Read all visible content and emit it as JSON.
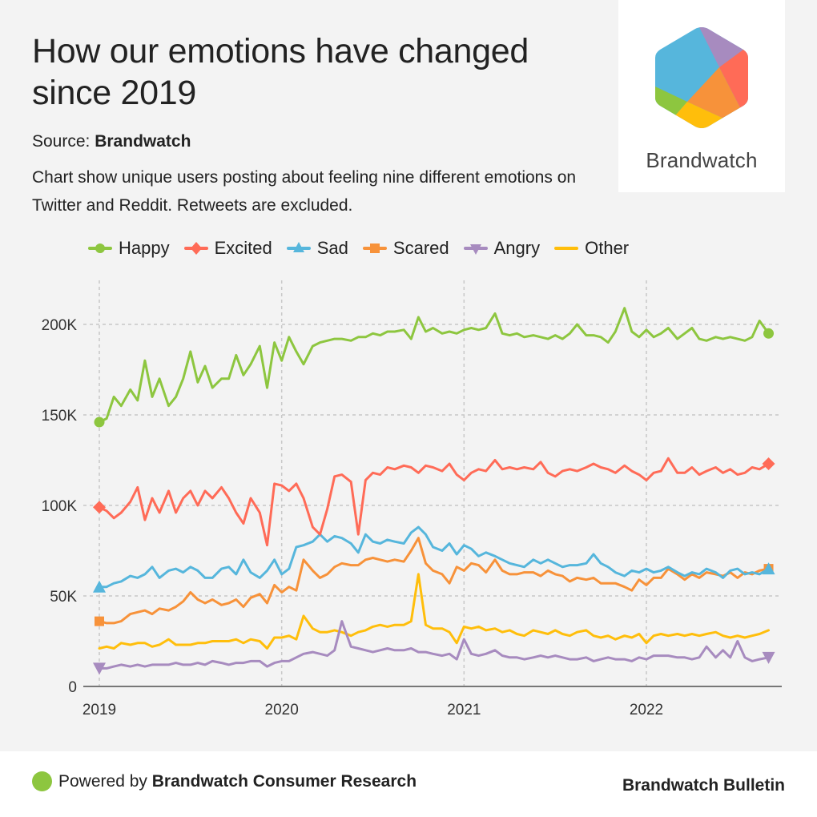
{
  "header": {
    "title": "How our emotions have changed since 2019",
    "source_label": "Source:",
    "source_name": "Brandwatch",
    "description": "Chart show unique users posting about feeling nine different emotions on Twitter and Reddit. Retweets are excluded."
  },
  "logo": {
    "text": "Brandwatch",
    "icon": "brandwatch-hexagon-logo"
  },
  "footer": {
    "powered_prefix": "Powered by",
    "powered_name": "Brandwatch Consumer Research",
    "right_text": "Brandwatch Bulletin",
    "dot_color": "#8dc63f"
  },
  "chart_data": {
    "type": "line",
    "title": "How our emotions have changed since 2019",
    "xlabel": "",
    "ylabel": "",
    "x_ticks": [
      "2019",
      "2020",
      "2021",
      "2022"
    ],
    "y_ticks": [
      "0",
      "50K",
      "100K",
      "150K",
      "200K"
    ],
    "y_tick_values": [
      0,
      50000,
      100000,
      150000,
      200000
    ],
    "ylim": [
      0,
      220000
    ],
    "xlim": [
      2019.0,
      2022.67
    ],
    "grid": true,
    "legend_position": "top",
    "x": [
      2019.0,
      2019.04,
      2019.08,
      2019.12,
      2019.17,
      2019.21,
      2019.25,
      2019.29,
      2019.33,
      2019.38,
      2019.42,
      2019.46,
      2019.5,
      2019.54,
      2019.58,
      2019.62,
      2019.67,
      2019.71,
      2019.75,
      2019.79,
      2019.83,
      2019.88,
      2019.92,
      2019.96,
      2020.0,
      2020.04,
      2020.08,
      2020.12,
      2020.17,
      2020.21,
      2020.25,
      2020.29,
      2020.33,
      2020.38,
      2020.42,
      2020.46,
      2020.5,
      2020.54,
      2020.58,
      2020.62,
      2020.67,
      2020.71,
      2020.75,
      2020.79,
      2020.83,
      2020.88,
      2020.92,
      2020.96,
      2021.0,
      2021.04,
      2021.08,
      2021.12,
      2021.17,
      2021.21,
      2021.25,
      2021.29,
      2021.33,
      2021.38,
      2021.42,
      2021.46,
      2021.5,
      2021.54,
      2021.58,
      2021.62,
      2021.67,
      2021.71,
      2021.75,
      2021.79,
      2021.83,
      2021.88,
      2021.92,
      2021.96,
      2022.0,
      2022.04,
      2022.08,
      2022.12,
      2022.17,
      2022.21,
      2022.25,
      2022.29,
      2022.33,
      2022.38,
      2022.42,
      2022.46,
      2022.5,
      2022.54,
      2022.58,
      2022.62,
      2022.67
    ],
    "series": [
      {
        "name": "Happy",
        "color": "#8dc63f",
        "marker": "circle",
        "values": [
          146000,
          148000,
          160000,
          155000,
          164000,
          158000,
          180000,
          160000,
          170000,
          155000,
          160000,
          170000,
          185000,
          168000,
          177000,
          165000,
          170000,
          170000,
          183000,
          172000,
          178000,
          188000,
          165000,
          190000,
          180000,
          193000,
          185000,
          178000,
          188000,
          190000,
          191000,
          192000,
          192000,
          191000,
          193000,
          193000,
          195000,
          194000,
          196000,
          196000,
          197000,
          192000,
          204000,
          196000,
          198000,
          195000,
          196000,
          195000,
          197000,
          198000,
          197000,
          198000,
          206000,
          195000,
          194000,
          195000,
          193000,
          194000,
          193000,
          192000,
          194000,
          192000,
          195000,
          200000,
          194000,
          194000,
          193000,
          190000,
          196000,
          209000,
          196000,
          193000,
          197000,
          193000,
          195000,
          198000,
          192000,
          195000,
          198000,
          192000,
          191000,
          193000,
          192000,
          193000,
          192000,
          191000,
          193000,
          202000,
          195000
        ]
      },
      {
        "name": "Excited",
        "color": "#ff6b57",
        "marker": "diamond",
        "values": [
          99000,
          97000,
          93000,
          96000,
          102000,
          110000,
          92000,
          104000,
          96000,
          108000,
          96000,
          104000,
          108000,
          100000,
          108000,
          104000,
          110000,
          104000,
          96000,
          90000,
          104000,
          96000,
          78000,
          112000,
          111000,
          108000,
          112000,
          104000,
          88000,
          84000,
          98000,
          116000,
          117000,
          113000,
          84000,
          114000,
          118000,
          117000,
          121000,
          120000,
          122000,
          121000,
          118000,
          122000,
          121000,
          119000,
          123000,
          117000,
          114000,
          118000,
          120000,
          119000,
          125000,
          120000,
          121000,
          120000,
          121000,
          120000,
          124000,
          118000,
          116000,
          119000,
          120000,
          119000,
          121000,
          123000,
          121000,
          120000,
          118000,
          122000,
          119000,
          117000,
          114000,
          118000,
          119000,
          126000,
          118000,
          118000,
          121000,
          117000,
          119000,
          121000,
          118000,
          120000,
          117000,
          118000,
          121000,
          120000,
          123000
        ]
      },
      {
        "name": "Sad",
        "color": "#56b6dc",
        "marker": "triangle-up",
        "values": [
          55000,
          55000,
          57000,
          58000,
          61000,
          60000,
          62000,
          66000,
          60000,
          64000,
          65000,
          63000,
          66000,
          64000,
          60000,
          60000,
          65000,
          66000,
          62000,
          70000,
          63000,
          60000,
          64000,
          70000,
          62000,
          65000,
          77000,
          78000,
          80000,
          84000,
          80000,
          83000,
          82000,
          79000,
          74000,
          84000,
          80000,
          79000,
          81000,
          80000,
          79000,
          85000,
          88000,
          84000,
          77000,
          75000,
          79000,
          73000,
          78000,
          76000,
          72000,
          74000,
          72000,
          70000,
          68000,
          67000,
          66000,
          70000,
          68000,
          70000,
          68000,
          66000,
          67000,
          67000,
          68000,
          73000,
          68000,
          66000,
          63000,
          61000,
          64000,
          63000,
          65000,
          63000,
          64000,
          66000,
          63000,
          61000,
          63000,
          62000,
          65000,
          63000,
          60000,
          64000,
          65000,
          62000,
          63000,
          62000,
          65000
        ]
      },
      {
        "name": "Scared",
        "color": "#f7923a",
        "marker": "square",
        "values": [
          36000,
          35000,
          35000,
          36000,
          40000,
          41000,
          42000,
          40000,
          43000,
          42000,
          44000,
          47000,
          52000,
          48000,
          46000,
          48000,
          45000,
          46000,
          48000,
          44000,
          49000,
          51000,
          46000,
          56000,
          52000,
          55000,
          53000,
          70000,
          64000,
          60000,
          62000,
          66000,
          68000,
          67000,
          67000,
          70000,
          71000,
          70000,
          69000,
          70000,
          69000,
          75000,
          82000,
          68000,
          64000,
          62000,
          57000,
          66000,
          64000,
          68000,
          67000,
          63000,
          70000,
          64000,
          62000,
          62000,
          63000,
          63000,
          61000,
          64000,
          62000,
          61000,
          58000,
          60000,
          59000,
          60000,
          57000,
          57000,
          57000,
          55000,
          53000,
          59000,
          56000,
          60000,
          60000,
          65000,
          62000,
          59000,
          62000,
          60000,
          63000,
          62000,
          61000,
          63000,
          60000,
          63000,
          62000,
          64000,
          65000
        ]
      },
      {
        "name": "Angry",
        "color": "#a78bbf",
        "marker": "triangle-down",
        "values": [
          10000,
          10000,
          11000,
          12000,
          11000,
          12000,
          11000,
          12000,
          12000,
          12000,
          13000,
          12000,
          12000,
          13000,
          12000,
          14000,
          13000,
          12000,
          13000,
          13000,
          14000,
          14000,
          11000,
          13000,
          14000,
          14000,
          16000,
          18000,
          19000,
          18000,
          17000,
          20000,
          36000,
          22000,
          21000,
          20000,
          19000,
          20000,
          21000,
          20000,
          20000,
          21000,
          19000,
          19000,
          18000,
          17000,
          18000,
          15000,
          26000,
          18000,
          17000,
          18000,
          20000,
          17000,
          16000,
          16000,
          15000,
          16000,
          17000,
          16000,
          17000,
          16000,
          15000,
          15000,
          16000,
          14000,
          15000,
          16000,
          15000,
          15000,
          14000,
          16000,
          15000,
          17000,
          17000,
          17000,
          16000,
          16000,
          15000,
          16000,
          22000,
          16000,
          20000,
          16000,
          25000,
          16000,
          14000,
          15000,
          16000
        ]
      },
      {
        "name": "Other",
        "color": "#ffbe0b",
        "marker": "none",
        "values": [
          21000,
          22000,
          21000,
          24000,
          23000,
          24000,
          24000,
          22000,
          23000,
          26000,
          23000,
          23000,
          23000,
          24000,
          24000,
          25000,
          25000,
          25000,
          26000,
          24000,
          26000,
          25000,
          21000,
          27000,
          27000,
          28000,
          26000,
          39000,
          32000,
          30000,
          30000,
          31000,
          30000,
          28000,
          30000,
          31000,
          33000,
          34000,
          33000,
          34000,
          34000,
          36000,
          62000,
          34000,
          32000,
          32000,
          30000,
          24000,
          33000,
          32000,
          33000,
          31000,
          32000,
          30000,
          31000,
          29000,
          28000,
          31000,
          30000,
          29000,
          31000,
          29000,
          28000,
          30000,
          31000,
          28000,
          27000,
          28000,
          26000,
          28000,
          27000,
          29000,
          24000,
          28000,
          29000,
          28000,
          29000,
          28000,
          29000,
          28000,
          29000,
          30000,
          28000,
          27000,
          28000,
          27000,
          28000,
          29000,
          31000
        ]
      }
    ]
  }
}
